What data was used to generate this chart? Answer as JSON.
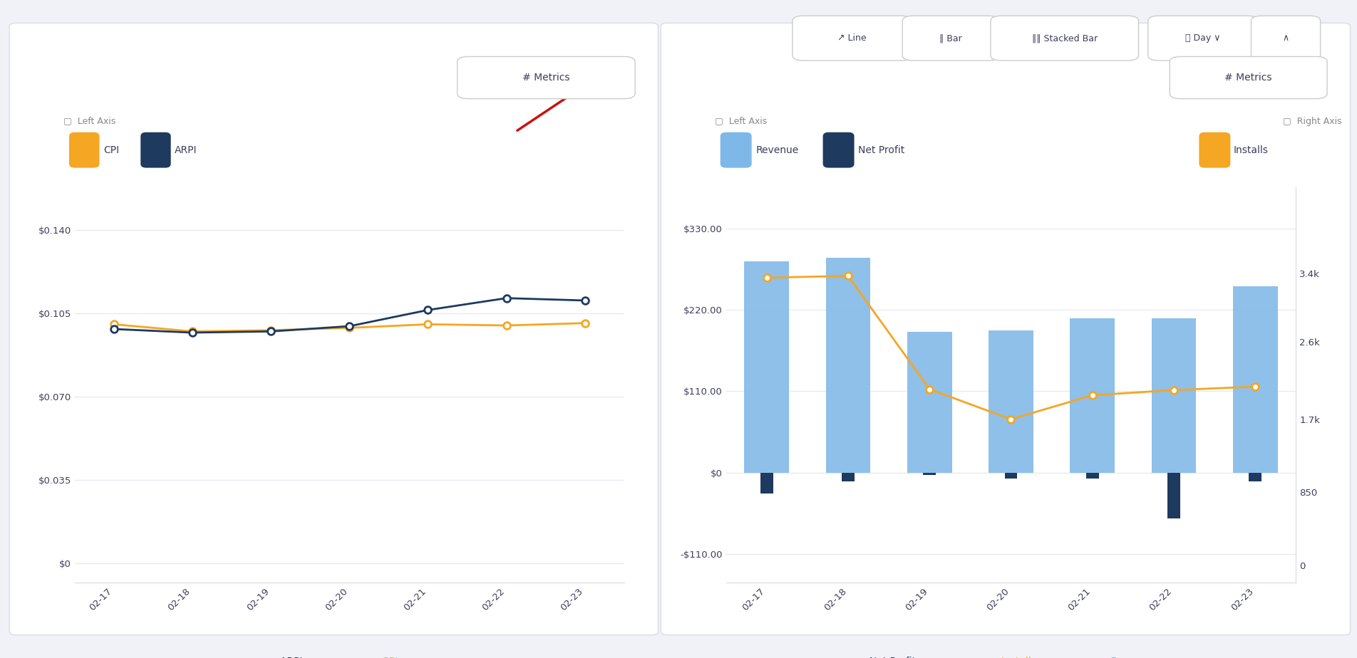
{
  "bg_color": "#f0f2f8",
  "panel_color": "#ffffff",
  "border_color": "#dde0e8",
  "dates": [
    "02-17",
    "02-18",
    "02-19",
    "02-20",
    "02-21",
    "02-22",
    "02-23"
  ],
  "left_chart": {
    "cpi_color": "#f5a623",
    "arpi_color": "#1e3a5f",
    "cpi_values": [
      0.1005,
      0.0975,
      0.098,
      0.099,
      0.1005,
      0.1,
      0.101
    ],
    "arpi_values": [
      0.0985,
      0.097,
      0.0975,
      0.0997,
      0.1065,
      0.1115,
      0.1105
    ],
    "yticks": [
      0.0,
      0.035,
      0.07,
      0.105,
      0.14
    ],
    "ytick_labels": [
      "$0",
      "$0.035",
      "$0.070",
      "$0.105",
      "$0.140"
    ],
    "ylim": [
      -0.008,
      0.158
    ]
  },
  "right_chart": {
    "revenue_color": "#7eb8e8",
    "net_profit_color": "#1e3a5f",
    "installs_color": "#f5a623",
    "revenue_values": [
      285,
      290,
      190,
      192,
      208,
      208,
      252
    ],
    "net_profit_values": [
      -28,
      -12,
      -3,
      -8,
      -8,
      -62,
      -12
    ],
    "installs_values": [
      3350,
      3370,
      2050,
      1700,
      1980,
      2040,
      2080
    ],
    "yticks_left": [
      -110.0,
      0.0,
      110.0,
      220.0,
      330.0
    ],
    "ytick_labels_left": [
      "-$110.00",
      "$0",
      "$110.00",
      "$220.00",
      "$330.00"
    ],
    "ylim_left": [
      -148,
      385
    ],
    "yticks_right": [
      0,
      850,
      1700,
      2600,
      3400
    ],
    "ytick_labels_right": [
      "0",
      "850",
      "1.7k",
      "2.6k",
      "3.4k"
    ],
    "ylim_right": [
      -200,
      4400
    ]
  },
  "font_color": "#3d3d5c",
  "label_color": "#888888",
  "grid_color": "#eaeaf0",
  "toolbar_bg": "#f0f2f8"
}
